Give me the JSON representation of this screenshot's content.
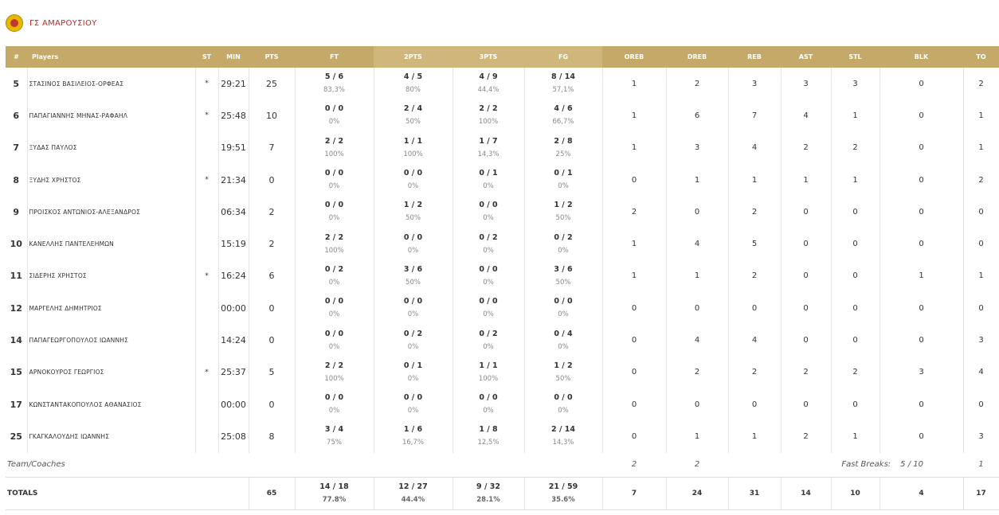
{
  "team": {
    "name": "ΓΣ ΑΜΑΡΟΥΣΙΟΥ"
  },
  "columns": [
    "#",
    "Players",
    "ST",
    "MIN",
    "PTS",
    "FT",
    "2PTS",
    "3PTS",
    "FG",
    "OREB",
    "DREB",
    "REB",
    "AST",
    "STL",
    "BLK",
    "TO"
  ],
  "players": [
    {
      "num": "5",
      "name": "ΣΤΑΣΙΝΟΣ ΒΑΣΙΛΕΙΟΣ-ΟΡΦΕΑΣ",
      "st": "*",
      "min": "29:21",
      "pts": "25",
      "ft": "5 / 6",
      "ft_pct": "83,3%",
      "p2": "4 / 5",
      "p2_pct": "80%",
      "p3": "4 / 9",
      "p3_pct": "44,4%",
      "fg": "8 / 14",
      "fg_pct": "57,1%",
      "oreb": "1",
      "dreb": "2",
      "reb": "3",
      "ast": "3",
      "stl": "3",
      "blk": "0",
      "to": "2"
    },
    {
      "num": "6",
      "name": "ΠΑΠΑΓΙΑΝΝΗΣ ΜΗΝΑΣ-ΡΑΦΑΗΛ",
      "st": "*",
      "min": "25:48",
      "pts": "10",
      "ft": "0 / 0",
      "ft_pct": "0%",
      "p2": "2 / 4",
      "p2_pct": "50%",
      "p3": "2 / 2",
      "p3_pct": "100%",
      "fg": "4 / 6",
      "fg_pct": "66,7%",
      "oreb": "1",
      "dreb": "6",
      "reb": "7",
      "ast": "4",
      "stl": "1",
      "blk": "0",
      "to": "1"
    },
    {
      "num": "7",
      "name": "ΞΥΔΑΣ ΠΑΥΛΟΣ",
      "st": "",
      "min": "19:51",
      "pts": "7",
      "ft": "2 / 2",
      "ft_pct": "100%",
      "p2": "1 / 1",
      "p2_pct": "100%",
      "p3": "1 / 7",
      "p3_pct": "14,3%",
      "fg": "2 / 8",
      "fg_pct": "25%",
      "oreb": "1",
      "dreb": "3",
      "reb": "4",
      "ast": "2",
      "stl": "2",
      "blk": "0",
      "to": "1"
    },
    {
      "num": "8",
      "name": "ΞΥΔΗΣ ΧΡΗΣΤΟΣ",
      "st": "*",
      "min": "21:34",
      "pts": "0",
      "ft": "0 / 0",
      "ft_pct": "0%",
      "p2": "0 / 0",
      "p2_pct": "0%",
      "p3": "0 / 1",
      "p3_pct": "0%",
      "fg": "0 / 1",
      "fg_pct": "0%",
      "oreb": "0",
      "dreb": "1",
      "reb": "1",
      "ast": "1",
      "stl": "1",
      "blk": "0",
      "to": "2"
    },
    {
      "num": "9",
      "name": "ΠΡΟΙΣΚΟΣ ΑΝΤΩΝΙΟΣ-ΑΛΕΞΑΝΔΡΟΣ",
      "st": "",
      "min": "06:34",
      "pts": "2",
      "ft": "0 / 0",
      "ft_pct": "0%",
      "p2": "1 / 2",
      "p2_pct": "50%",
      "p3": "0 / 0",
      "p3_pct": "0%",
      "fg": "1 / 2",
      "fg_pct": "50%",
      "oreb": "2",
      "dreb": "0",
      "reb": "2",
      "ast": "0",
      "stl": "0",
      "blk": "0",
      "to": "0"
    },
    {
      "num": "10",
      "name": "ΚΑΝΕΛΛΗΣ ΠΑΝΤΕΛΕΗΜΩΝ",
      "st": "",
      "min": "15:19",
      "pts": "2",
      "ft": "2 / 2",
      "ft_pct": "100%",
      "p2": "0 / 0",
      "p2_pct": "0%",
      "p3": "0 / 2",
      "p3_pct": "0%",
      "fg": "0 / 2",
      "fg_pct": "0%",
      "oreb": "1",
      "dreb": "4",
      "reb": "5",
      "ast": "0",
      "stl": "0",
      "blk": "0",
      "to": "0"
    },
    {
      "num": "11",
      "name": "ΣΙΔΕΡΗΣ ΧΡΗΣΤΟΣ",
      "st": "*",
      "min": "16:24",
      "pts": "6",
      "ft": "0 / 2",
      "ft_pct": "0%",
      "p2": "3 / 6",
      "p2_pct": "50%",
      "p3": "0 / 0",
      "p3_pct": "0%",
      "fg": "3 / 6",
      "fg_pct": "50%",
      "oreb": "1",
      "dreb": "1",
      "reb": "2",
      "ast": "0",
      "stl": "0",
      "blk": "1",
      "to": "1"
    },
    {
      "num": "12",
      "name": "ΜΑΡΓΕΛΗΣ ΔΗΜΗΤΡΙΟΣ",
      "st": "",
      "min": "00:00",
      "pts": "0",
      "ft": "0 / 0",
      "ft_pct": "0%",
      "p2": "0 / 0",
      "p2_pct": "0%",
      "p3": "0 / 0",
      "p3_pct": "0%",
      "fg": "0 / 0",
      "fg_pct": "0%",
      "oreb": "0",
      "dreb": "0",
      "reb": "0",
      "ast": "0",
      "stl": "0",
      "blk": "0",
      "to": "0"
    },
    {
      "num": "14",
      "name": "ΠΑΠΑΓΕΩΡΓΟΠΟΥΛΟΣ ΙΩΑΝΝΗΣ",
      "st": "",
      "min": "14:24",
      "pts": "0",
      "ft": "0 / 0",
      "ft_pct": "0%",
      "p2": "0 / 2",
      "p2_pct": "0%",
      "p3": "0 / 2",
      "p3_pct": "0%",
      "fg": "0 / 4",
      "fg_pct": "0%",
      "oreb": "0",
      "dreb": "4",
      "reb": "4",
      "ast": "0",
      "stl": "0",
      "blk": "0",
      "to": "3"
    },
    {
      "num": "15",
      "name": "ΑΡΝΟΚΟΥΡΟΣ ΓΕΩΡΓΙΟΣ",
      "st": "*",
      "min": "25:37",
      "pts": "5",
      "ft": "2 / 2",
      "ft_pct": "100%",
      "p2": "0 / 1",
      "p2_pct": "0%",
      "p3": "1 / 1",
      "p3_pct": "100%",
      "fg": "1 / 2",
      "fg_pct": "50%",
      "oreb": "0",
      "dreb": "2",
      "reb": "2",
      "ast": "2",
      "stl": "2",
      "blk": "3",
      "to": "4"
    },
    {
      "num": "17",
      "name": "ΚΩΝΣΤΑΝΤΑΚΟΠΟΥΛΟΣ ΑΘΑΝΑΣΙΟΣ",
      "st": "",
      "min": "00:00",
      "pts": "0",
      "ft": "0 / 0",
      "ft_pct": "0%",
      "p2": "0 / 0",
      "p2_pct": "0%",
      "p3": "0 / 0",
      "p3_pct": "0%",
      "fg": "0 / 0",
      "fg_pct": "0%",
      "oreb": "0",
      "dreb": "0",
      "reb": "0",
      "ast": "0",
      "stl": "0",
      "blk": "0",
      "to": "0"
    },
    {
      "num": "25",
      "name": "ΓΚΑΓΚΑΛΟΥΔΗΣ ΙΩΑΝΝΗΣ",
      "st": "",
      "min": "25:08",
      "pts": "8",
      "ft": "3 / 4",
      "ft_pct": "75%",
      "p2": "1 / 6",
      "p2_pct": "16,7%",
      "p3": "1 / 8",
      "p3_pct": "12,5%",
      "fg": "2 / 14",
      "fg_pct": "14,3%",
      "oreb": "0",
      "dreb": "1",
      "reb": "1",
      "ast": "2",
      "stl": "1",
      "blk": "0",
      "to": "3"
    }
  ],
  "team_coaches": {
    "label": "Team/Coaches",
    "oreb": "2",
    "dreb": "2",
    "fast_breaks_label": "Fast Breaks:",
    "fast_breaks_value": "5 / 10",
    "to": "1"
  },
  "totals": {
    "label": "TOTALS",
    "pts": "65",
    "ft": "14 / 18",
    "ft_pct": "77.8%",
    "p2": "12 / 27",
    "p2_pct": "44.4%",
    "p3": "9 / 32",
    "p3_pct": "28.1%",
    "fg": "21 / 59",
    "fg_pct": "35.6%",
    "oreb": "7",
    "dreb": "24",
    "reb": "31",
    "ast": "14",
    "stl": "10",
    "blk": "4",
    "to": "17"
  },
  "colors": {
    "header_bg": "#c4a968",
    "team_name": "#cc1f1f"
  }
}
